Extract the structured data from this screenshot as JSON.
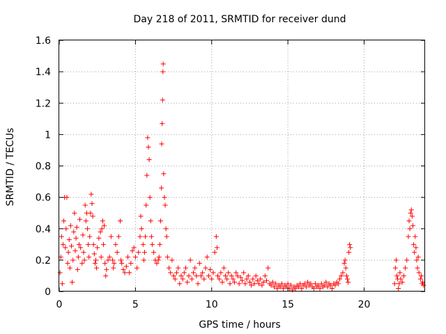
{
  "chart_data": {
    "type": "scatter",
    "title": "Day 218 of 2011, SRMTID for receiver dund",
    "xlabel": "GPS time / hours",
    "ylabel": "SRMTID / TECUs",
    "xlim": [
      0,
      24
    ],
    "ylim": [
      0,
      1.6
    ],
    "grid": true,
    "marker": "+",
    "marker_color": "#ff0000",
    "xticks": [
      {
        "value": 0,
        "label": "0"
      },
      {
        "value": 5,
        "label": "5"
      },
      {
        "value": 10,
        "label": "10"
      },
      {
        "value": 15,
        "label": "15"
      },
      {
        "value": 20,
        "label": "20"
      }
    ],
    "yticks": [
      {
        "value": 0,
        "label": "0"
      },
      {
        "value": 0.2,
        "label": "0.2"
      },
      {
        "value": 0.4,
        "label": "0.4"
      },
      {
        "value": 0.6,
        "label": "0.6"
      },
      {
        "value": 0.8,
        "label": "0.8"
      },
      {
        "value": 1.0,
        "label": "1"
      },
      {
        "value": 1.2,
        "label": "1.2"
      },
      {
        "value": 1.4,
        "label": "1.4"
      },
      {
        "value": 1.6,
        "label": "1.6"
      }
    ],
    "series": [
      {
        "name": "SRMTID",
        "points": [
          [
            0.05,
            0.12
          ],
          [
            0.1,
            0.22
          ],
          [
            0.15,
            0.35
          ],
          [
            0.2,
            0.05
          ],
          [
            0.25,
            0.3
          ],
          [
            0.3,
            0.45
          ],
          [
            0.35,
            0.6
          ],
          [
            0.4,
            0.28
          ],
          [
            0.45,
            0.4
          ],
          [
            0.5,
            0.6
          ],
          [
            0.55,
            0.18
          ],
          [
            0.6,
            0.25
          ],
          [
            0.65,
            0.33
          ],
          [
            0.7,
            0.15
          ],
          [
            0.75,
            0.42
          ],
          [
            0.8,
            0.29
          ],
          [
            0.85,
            0.06
          ],
          [
            0.9,
            0.2
          ],
          [
            0.95,
            0.38
          ],
          [
            1.0,
            0.5
          ],
          [
            1.05,
            0.26
          ],
          [
            1.1,
            0.34
          ],
          [
            1.15,
            0.41
          ],
          [
            1.2,
            0.14
          ],
          [
            1.25,
            0.22
          ],
          [
            1.3,
            0.3
          ],
          [
            1.35,
            0.46
          ],
          [
            1.4,
            0.28
          ],
          [
            1.5,
            0.18
          ],
          [
            1.55,
            0.36
          ],
          [
            1.6,
            0.25
          ],
          [
            1.65,
            0.2
          ],
          [
            1.7,
            0.55
          ],
          [
            1.75,
            0.45
          ],
          [
            1.8,
            0.5
          ],
          [
            1.85,
            0.4
          ],
          [
            1.9,
            0.3
          ],
          [
            1.95,
            0.22
          ],
          [
            2.0,
            0.35
          ],
          [
            2.05,
            0.5
          ],
          [
            2.1,
            0.62
          ],
          [
            2.15,
            0.56
          ],
          [
            2.2,
            0.48
          ],
          [
            2.25,
            0.3
          ],
          [
            2.3,
            0.24
          ],
          [
            2.35,
            0.18
          ],
          [
            2.4,
            0.2
          ],
          [
            2.45,
            0.15
          ],
          [
            2.5,
            0.28
          ],
          [
            2.6,
            0.34
          ],
          [
            2.7,
            0.38
          ],
          [
            2.75,
            0.22
          ],
          [
            2.8,
            0.4
          ],
          [
            2.85,
            0.45
          ],
          [
            2.9,
            0.3
          ],
          [
            2.95,
            0.42
          ],
          [
            3.0,
            0.18
          ],
          [
            3.05,
            0.1
          ],
          [
            3.1,
            0.14
          ],
          [
            3.2,
            0.2
          ],
          [
            3.3,
            0.22
          ],
          [
            3.4,
            0.35
          ],
          [
            3.5,
            0.2
          ],
          [
            3.55,
            0.15
          ],
          [
            3.6,
            0.18
          ],
          [
            3.7,
            0.3
          ],
          [
            3.8,
            0.25
          ],
          [
            3.9,
            0.35
          ],
          [
            4.0,
            0.45
          ],
          [
            4.05,
            0.2
          ],
          [
            4.1,
            0.18
          ],
          [
            4.2,
            0.14
          ],
          [
            4.3,
            0.12
          ],
          [
            4.4,
            0.16
          ],
          [
            4.5,
            0.22
          ],
          [
            4.6,
            0.12
          ],
          [
            4.7,
            0.18
          ],
          [
            4.8,
            0.26
          ],
          [
            4.9,
            0.28
          ],
          [
            5.0,
            0.22
          ],
          [
            5.1,
            0.15
          ],
          [
            5.2,
            0.25
          ],
          [
            5.3,
            0.35
          ],
          [
            5.35,
            0.48
          ],
          [
            5.4,
            0.4
          ],
          [
            5.5,
            0.3
          ],
          [
            5.55,
            0.2
          ],
          [
            5.6,
            0.25
          ],
          [
            5.65,
            0.35
          ],
          [
            5.7,
            0.55
          ],
          [
            5.75,
            0.74
          ],
          [
            5.8,
            0.98
          ],
          [
            5.85,
            0.92
          ],
          [
            5.9,
            0.84
          ],
          [
            5.95,
            0.6
          ],
          [
            6.0,
            0.45
          ],
          [
            6.05,
            0.35
          ],
          [
            6.1,
            0.3
          ],
          [
            6.2,
            0.25
          ],
          [
            6.3,
            0.2
          ],
          [
            6.4,
            0.18
          ],
          [
            6.5,
            0.2
          ],
          [
            6.55,
            0.22
          ],
          [
            6.6,
            0.3
          ],
          [
            6.65,
            0.45
          ],
          [
            6.7,
            0.66
          ],
          [
            6.72,
            0.94
          ],
          [
            6.75,
            1.07
          ],
          [
            6.78,
            1.22
          ],
          [
            6.8,
            1.4
          ],
          [
            6.82,
            1.45
          ],
          [
            6.85,
            0.75
          ],
          [
            6.9,
            0.6
          ],
          [
            6.95,
            0.55
          ],
          [
            7.0,
            0.4
          ],
          [
            7.05,
            0.35
          ],
          [
            7.1,
            0.22
          ],
          [
            7.2,
            0.15
          ],
          [
            7.3,
            0.12
          ],
          [
            7.4,
            0.2
          ],
          [
            7.5,
            0.1
          ],
          [
            7.6,
            0.08
          ],
          [
            7.7,
            0.12
          ],
          [
            7.8,
            0.15
          ],
          [
            7.9,
            0.05
          ],
          [
            8.0,
            0.1
          ],
          [
            8.1,
            0.08
          ],
          [
            8.2,
            0.12
          ],
          [
            8.3,
            0.15
          ],
          [
            8.4,
            0.06
          ],
          [
            8.5,
            0.1
          ],
          [
            8.6,
            0.2
          ],
          [
            8.7,
            0.08
          ],
          [
            8.8,
            0.12
          ],
          [
            8.9,
            0.15
          ],
          [
            9.0,
            0.1
          ],
          [
            9.1,
            0.05
          ],
          [
            9.2,
            0.18
          ],
          [
            9.3,
            0.1
          ],
          [
            9.4,
            0.12
          ],
          [
            9.5,
            0.08
          ],
          [
            9.6,
            0.15
          ],
          [
            9.7,
            0.22
          ],
          [
            9.8,
            0.1
          ],
          [
            9.9,
            0.14
          ],
          [
            10.0,
            0.08
          ],
          [
            10.1,
            0.12
          ],
          [
            10.2,
            0.25
          ],
          [
            10.3,
            0.35
          ],
          [
            10.35,
            0.28
          ],
          [
            10.4,
            0.1
          ],
          [
            10.5,
            0.08
          ],
          [
            10.6,
            0.12
          ],
          [
            10.7,
            0.06
          ],
          [
            10.8,
            0.15
          ],
          [
            10.9,
            0.1
          ],
          [
            11.0,
            0.08
          ],
          [
            11.1,
            0.12
          ],
          [
            11.2,
            0.05
          ],
          [
            11.3,
            0.1
          ],
          [
            11.4,
            0.08
          ],
          [
            11.5,
            0.06
          ],
          [
            11.6,
            0.12
          ],
          [
            11.7,
            0.1
          ],
          [
            11.8,
            0.05
          ],
          [
            11.9,
            0.09
          ],
          [
            12.0,
            0.07
          ],
          [
            12.1,
            0.12
          ],
          [
            12.2,
            0.05
          ],
          [
            12.3,
            0.08
          ],
          [
            12.4,
            0.1
          ],
          [
            12.5,
            0.06
          ],
          [
            12.6,
            0.04
          ],
          [
            12.7,
            0.08
          ],
          [
            12.8,
            0.05
          ],
          [
            12.9,
            0.1
          ],
          [
            13.0,
            0.07
          ],
          [
            13.1,
            0.05
          ],
          [
            13.2,
            0.08
          ],
          [
            13.3,
            0.04
          ],
          [
            13.4,
            0.06
          ],
          [
            13.5,
            0.1
          ],
          [
            13.6,
            0.07
          ],
          [
            13.7,
            0.15
          ],
          [
            13.8,
            0.05
          ],
          [
            13.9,
            0.04
          ],
          [
            14.0,
            0.06
          ],
          [
            14.1,
            0.03
          ],
          [
            14.2,
            0.05
          ],
          [
            14.3,
            0.02
          ],
          [
            14.4,
            0.04
          ],
          [
            14.5,
            0.03
          ],
          [
            14.6,
            0.05
          ],
          [
            14.7,
            0.02
          ],
          [
            14.8,
            0.04
          ],
          [
            14.9,
            0.03
          ],
          [
            15.0,
            0.05
          ],
          [
            15.1,
            0.02
          ],
          [
            15.2,
            0.04
          ],
          [
            15.3,
            0.01
          ],
          [
            15.4,
            0.03
          ],
          [
            15.5,
            0.02
          ],
          [
            15.6,
            0.04
          ],
          [
            15.7,
            0.03
          ],
          [
            15.8,
            0.05
          ],
          [
            15.9,
            0.02
          ],
          [
            16.0,
            0.04
          ],
          [
            16.1,
            0.05
          ],
          [
            16.2,
            0.03
          ],
          [
            16.3,
            0.06
          ],
          [
            16.4,
            0.04
          ],
          [
            16.5,
            0.05
          ],
          [
            16.6,
            0.03
          ],
          [
            16.7,
            0.02
          ],
          [
            16.8,
            0.05
          ],
          [
            16.9,
            0.03
          ],
          [
            17.0,
            0.04
          ],
          [
            17.1,
            0.02
          ],
          [
            17.2,
            0.05
          ],
          [
            17.3,
            0.03
          ],
          [
            17.4,
            0.04
          ],
          [
            17.5,
            0.06
          ],
          [
            17.6,
            0.03
          ],
          [
            17.7,
            0.05
          ],
          [
            17.8,
            0.04
          ],
          [
            17.9,
            0.02
          ],
          [
            18.0,
            0.05
          ],
          [
            18.1,
            0.04
          ],
          [
            18.2,
            0.06
          ],
          [
            18.3,
            0.05
          ],
          [
            18.4,
            0.08
          ],
          [
            18.5,
            0.1
          ],
          [
            18.6,
            0.12
          ],
          [
            18.7,
            0.18
          ],
          [
            18.75,
            0.2
          ],
          [
            18.8,
            0.15
          ],
          [
            18.85,
            0.1
          ],
          [
            18.9,
            0.08
          ],
          [
            18.95,
            0.06
          ],
          [
            19.0,
            0.25
          ],
          [
            19.05,
            0.3
          ],
          [
            19.1,
            0.28
          ],
          [
            22.0,
            0.05
          ],
          [
            22.05,
            0.15
          ],
          [
            22.1,
            0.2
          ],
          [
            22.15,
            0.1
          ],
          [
            22.2,
            0.08
          ],
          [
            22.25,
            0.02
          ],
          [
            22.3,
            0.05
          ],
          [
            22.35,
            0.12
          ],
          [
            22.4,
            0.08
          ],
          [
            22.5,
            0.06
          ],
          [
            22.6,
            0.1
          ],
          [
            22.7,
            0.15
          ],
          [
            22.8,
            0.2
          ],
          [
            22.9,
            0.35
          ],
          [
            22.95,
            0.45
          ],
          [
            23.0,
            0.4
          ],
          [
            23.05,
            0.5
          ],
          [
            23.1,
            0.52
          ],
          [
            23.15,
            0.48
          ],
          [
            23.2,
            0.42
          ],
          [
            23.25,
            0.3
          ],
          [
            23.3,
            0.25
          ],
          [
            23.35,
            0.35
          ],
          [
            23.4,
            0.28
          ],
          [
            23.45,
            0.2
          ],
          [
            23.5,
            0.15
          ],
          [
            23.55,
            0.22
          ],
          [
            23.6,
            0.12
          ],
          [
            23.7,
            0.08
          ],
          [
            23.75,
            0.1
          ],
          [
            23.8,
            0.05
          ],
          [
            23.85,
            0.06
          ],
          [
            23.9,
            0.04
          ]
        ]
      }
    ]
  }
}
